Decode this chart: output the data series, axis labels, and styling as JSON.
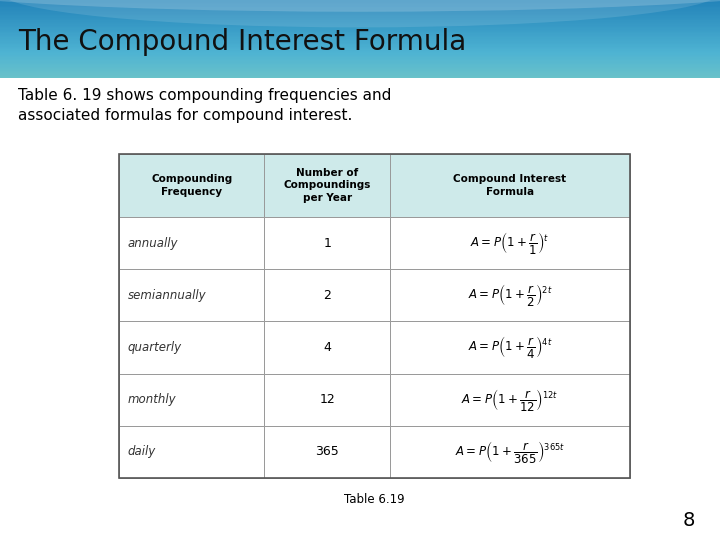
{
  "title": "The Compound Interest Formula",
  "subtitle": "Table 6. 19 shows compounding frequencies and\nassociated formulas for compound interest.",
  "table_caption": "Table 6.19",
  "page_number": "8",
  "header_bg": "#ceeaea",
  "table_border_color": "#999999",
  "title_bg_top": "#8edede",
  "title_bg_bot": "#6ecece",
  "col_headers": [
    "Compounding\nFrequency",
    "Number of\nCompoundings\nper Year",
    "Compound Interest\nFormula"
  ],
  "rows": [
    [
      "annually",
      "1",
      "$A = P\\left(1 + \\dfrac{r}{1}\\right)^{t}$"
    ],
    [
      "semiannually",
      "2",
      "$A = P\\left(1 + \\dfrac{r}{2}\\right)^{2t}$"
    ],
    [
      "quarterly",
      "4",
      "$A = P\\left(1 + \\dfrac{r}{4}\\right)^{4t}$"
    ],
    [
      "monthly",
      "12",
      "$A = P\\left(1 + \\dfrac{r}{12}\\right)^{12t}$"
    ],
    [
      "daily",
      "365",
      "$A = P\\left(1 + \\dfrac{r}{365}\\right)^{365t}$"
    ]
  ],
  "fig_width": 7.2,
  "fig_height": 5.4,
  "fig_dpi": 100
}
